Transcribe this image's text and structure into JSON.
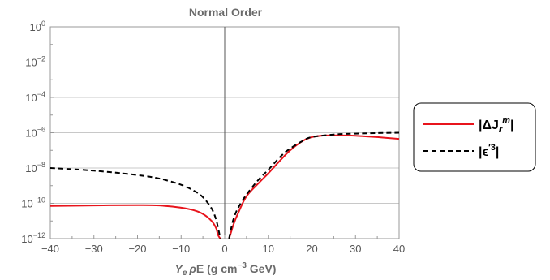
{
  "chart_data": {
    "type": "line",
    "title": "Normal Order",
    "xlabel": {
      "Y": "Y",
      "e": "e",
      "rho": "ρ",
      "rest": "E (g cm",
      "exp": "−3",
      "unit": " GeV)"
    },
    "ylabel": "",
    "xlim": [
      -40,
      40
    ],
    "ylim_log10": [
      -12,
      0
    ],
    "y_scale": "log",
    "x_ticks": [
      {
        "v": -40,
        "label": "−40"
      },
      {
        "v": -30,
        "label": "−30"
      },
      {
        "v": -20,
        "label": "−20"
      },
      {
        "v": -10,
        "label": "−10"
      },
      {
        "v": 0,
        "label": "0"
      },
      {
        "v": 10,
        "label": "10"
      },
      {
        "v": 20,
        "label": "20"
      },
      {
        "v": 30,
        "label": "30"
      },
      {
        "v": 40,
        "label": "40"
      }
    ],
    "y_ticks": [
      {
        "e": 0,
        "base": "10",
        "exp": "0"
      },
      {
        "e": -2,
        "base": "10",
        "exp": "−2"
      },
      {
        "e": -4,
        "base": "10",
        "exp": "−4"
      },
      {
        "e": -6,
        "base": "10",
        "exp": "−6"
      },
      {
        "e": -8,
        "base": "10",
        "exp": "−8"
      },
      {
        "e": -10,
        "base": "10",
        "exp": "−10"
      },
      {
        "e": -12,
        "base": "10",
        "exp": "−12"
      }
    ],
    "grid": "horizontal",
    "legend_position": "right",
    "series": [
      {
        "style": "solid",
        "color": "#e8141c",
        "label": {
          "pre": "|ΔJ",
          "sub": "r",
          "sup": "m",
          "post": "|"
        },
        "x": [
          -40,
          -30,
          -20,
          -15,
          -10,
          -7,
          -5,
          -3,
          -2,
          -1.5,
          -1,
          1,
          1.5,
          2,
          3,
          5,
          8,
          10,
          13,
          15,
          18,
          20,
          22,
          25,
          30,
          35,
          40
        ],
        "log10y": [
          -10.15,
          -10.12,
          -10.1,
          -10.12,
          -10.25,
          -10.4,
          -10.6,
          -11.0,
          -11.4,
          -11.8,
          -12.0,
          -12.0,
          -11.6,
          -11.2,
          -10.6,
          -9.6,
          -8.8,
          -8.3,
          -7.5,
          -7.0,
          -6.45,
          -6.25,
          -6.17,
          -6.15,
          -6.17,
          -6.25,
          -6.35
        ]
      },
      {
        "style": "dashed",
        "color": "#000000",
        "label": {
          "pre": "|ϵ",
          "sup": "′3",
          "post": "|"
        },
        "x": [
          -40,
          -30,
          -20,
          -15,
          -10,
          -7,
          -5,
          -3,
          -2,
          -1.5,
          -1,
          1,
          1.5,
          2,
          3,
          5,
          8,
          10,
          13,
          15,
          18,
          20,
          25,
          30,
          35,
          40
        ],
        "log10y": [
          -8.0,
          -8.15,
          -8.4,
          -8.6,
          -8.95,
          -9.3,
          -9.65,
          -10.3,
          -10.9,
          -11.4,
          -12.0,
          -12.0,
          -11.4,
          -10.9,
          -10.3,
          -9.5,
          -8.6,
          -8.1,
          -7.3,
          -6.9,
          -6.45,
          -6.25,
          -6.1,
          -6.05,
          -6.02,
          -6.0
        ]
      }
    ]
  }
}
